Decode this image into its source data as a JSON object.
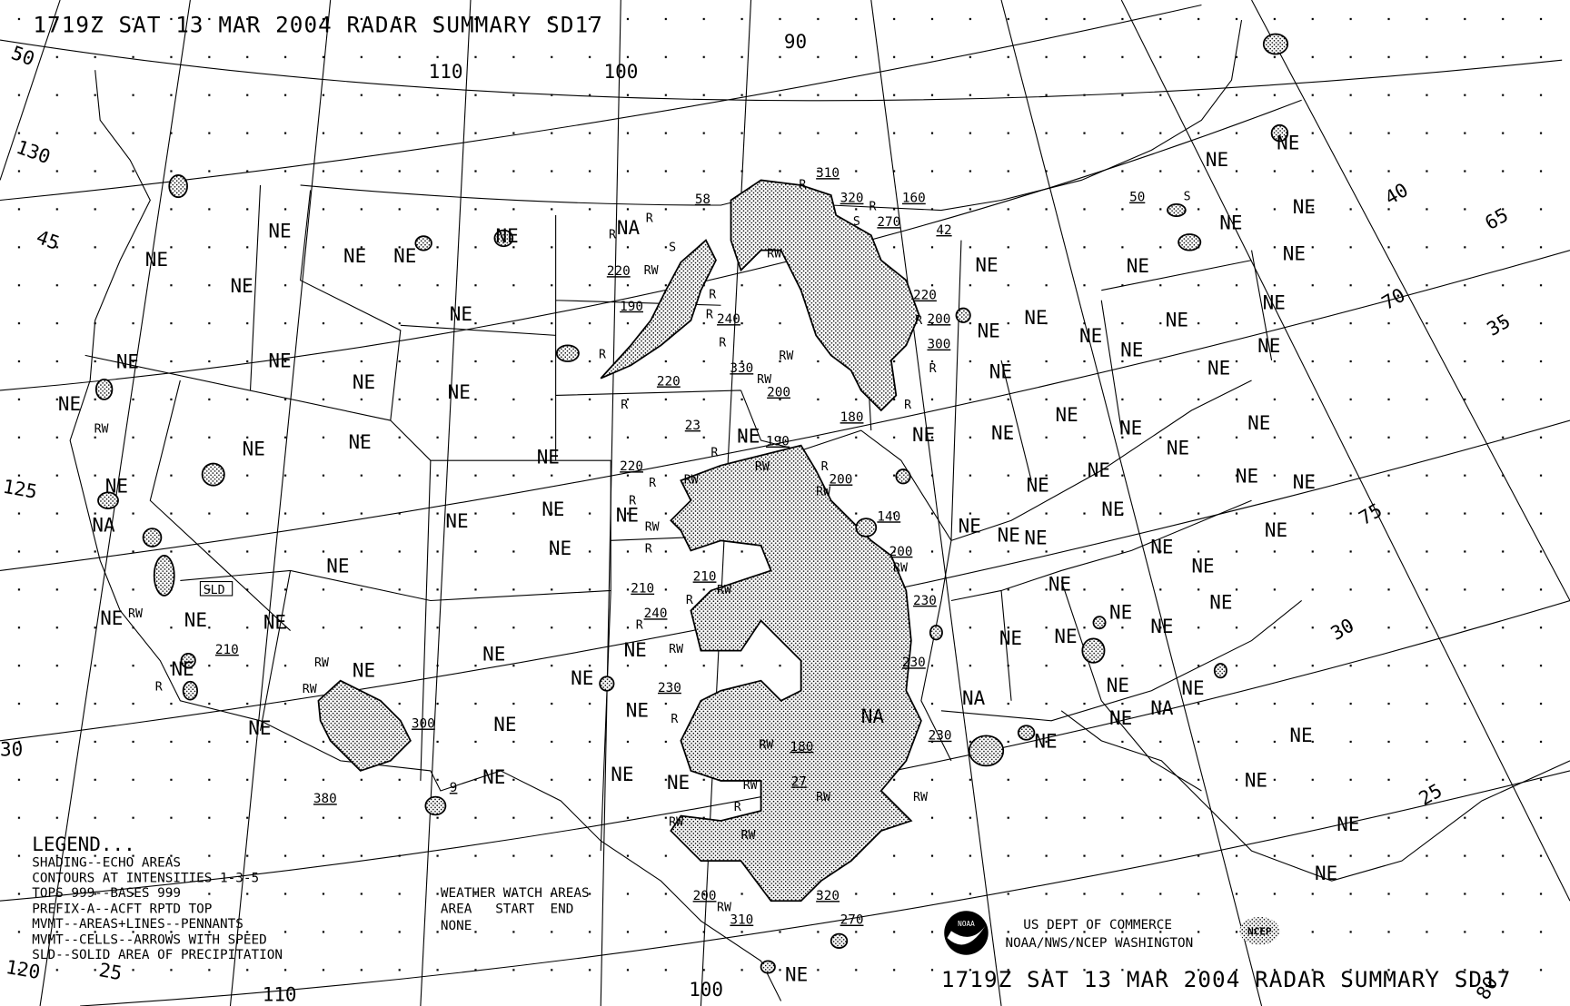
{
  "title": "1719Z SAT 13 MAR 2004 RADAR SUMMARY SD17",
  "footer_title": "1719Z SAT 13 MAR 2004 RADAR SUMMARY SD17",
  "labels": {
    "ne": "NE",
    "na": "NA",
    "r": "R",
    "rw": "RW",
    "s": "S",
    "sld": "SLD"
  },
  "graticule_labels": [
    "50",
    "130",
    "45",
    "125",
    "120",
    "25",
    "110",
    "100",
    "90",
    "40",
    "65",
    "70",
    "35",
    "75",
    "30",
    "25",
    "100",
    "110",
    "80",
    "30"
  ],
  "tops": [
    "310",
    "320",
    "160",
    "270",
    "42",
    "58",
    "50",
    "220",
    "190",
    "240",
    "220",
    "200",
    "300",
    "330",
    "220",
    "200",
    "180",
    "23",
    "190",
    "220",
    "200",
    "140",
    "200",
    "210",
    "210",
    "240",
    "230",
    "230",
    "230",
    "230",
    "180",
    "27",
    "300",
    "380",
    "9",
    "210",
    "200",
    "310",
    "320",
    "270"
  ],
  "legend": {
    "heading": "LEGEND...",
    "lines": [
      "SHADING--ECHO AREAS",
      "CONTOURS AT INTENSITIES 1-3-5",
      "TOPS 999--BASES 999",
      "PREFIX-A--ACFT RPTD TOP",
      "MVMT--AREAS+LINES--PENNANTS",
      "MVMT--CELLS--ARROWS WITH SPEED",
      "SLD--SOLID AREA OF PRECIPITATION"
    ]
  },
  "watch": {
    "heading": "WEATHER WATCH AREAS",
    "columns": "AREA   START  END",
    "value": "NONE"
  },
  "credits": {
    "line1": "US DEPT OF COMMERCE",
    "line2": "NOAA/NWS/NCEP WASHINGTON",
    "noaa_logo": "NOAA",
    "ncep_logo": "NCEP"
  },
  "colors": {
    "ink": "#000000",
    "background": "#ffffff"
  }
}
